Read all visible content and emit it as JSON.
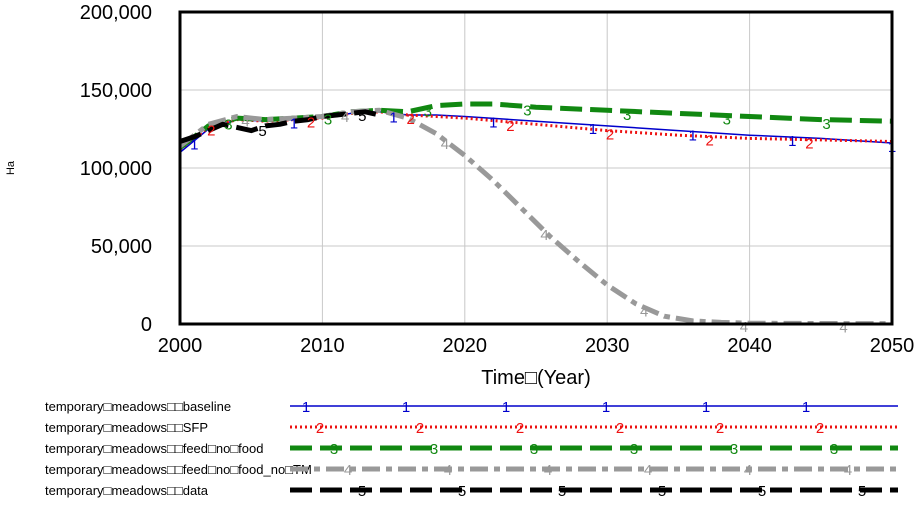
{
  "chart_data": {
    "type": "line",
    "title": "",
    "xlabel": "Time□(Year)",
    "ylabel": "Ha",
    "xlim": [
      2000,
      2050
    ],
    "ylim": [
      0,
      200000
    ],
    "x_ticks": [
      2000,
      2010,
      2020,
      2030,
      2040,
      2050
    ],
    "x_tick_labels": [
      "2000",
      "2010",
      "2020",
      "2030",
      "2040",
      "2050"
    ],
    "y_ticks": [
      0,
      50000,
      100000,
      150000,
      200000
    ],
    "y_tick_labels": [
      "0",
      "50,000",
      "100,000",
      "150,000",
      "200,000"
    ],
    "grid": true,
    "legend_position": "bottom",
    "series": [
      {
        "name": "temporary□meadows□□baseline",
        "marker": "1",
        "color": "#0000cc",
        "style": "solid",
        "x": [
          2000,
          2002,
          2004,
          2006,
          2008,
          2010,
          2012,
          2014,
          2016,
          2018,
          2020,
          2025,
          2030,
          2035,
          2040,
          2045,
          2050
        ],
        "y": [
          110000,
          125000,
          131000,
          130000,
          131000,
          132000,
          135000,
          136000,
          134000,
          134000,
          133000,
          130000,
          127000,
          124000,
          121000,
          119000,
          116000
        ]
      },
      {
        "name": "temporary□meadows□□SFP",
        "marker": "2",
        "color": "#ee1111",
        "style": "dotted",
        "x": [
          2000,
          2002,
          2004,
          2006,
          2008,
          2010,
          2012,
          2014,
          2016,
          2018,
          2020,
          2025,
          2030,
          2035,
          2040,
          2045,
          2050
        ],
        "y": [
          112000,
          126000,
          131000,
          130000,
          131000,
          132000,
          135000,
          136000,
          134000,
          133000,
          132000,
          128000,
          124000,
          121000,
          119000,
          118000,
          117000
        ]
      },
      {
        "name": "temporary□meadows□□feed□no□food",
        "marker": "3",
        "color": "#118811",
        "style": "dash",
        "x": [
          2000,
          2002,
          2004,
          2006,
          2008,
          2010,
          2012,
          2014,
          2016,
          2018,
          2020,
          2022,
          2025,
          2030,
          2035,
          2040,
          2045,
          2050
        ],
        "y": [
          113000,
          127000,
          132000,
          131000,
          132000,
          133000,
          136000,
          137000,
          136000,
          140000,
          141000,
          141000,
          139000,
          137000,
          135000,
          133000,
          131000,
          130000
        ]
      },
      {
        "name": "temporary□meadows□□feed□no□food_no□TM",
        "marker": "4",
        "color": "#999999",
        "style": "dashdot",
        "x": [
          2000,
          2002,
          2004,
          2006,
          2008,
          2010,
          2012,
          2014,
          2016,
          2018,
          2020,
          2022,
          2024,
          2026,
          2028,
          2030,
          2032,
          2034,
          2036,
          2038,
          2040,
          2045,
          2050
        ],
        "y": [
          114000,
          128000,
          133000,
          131000,
          132000,
          133000,
          136000,
          137000,
          132000,
          122000,
          108000,
          92000,
          74000,
          56000,
          40000,
          25000,
          13000,
          5000,
          2000,
          1000,
          500,
          300,
          200
        ]
      },
      {
        "name": "temporary□meadows□□data",
        "marker": "5",
        "color": "#000000",
        "style": "dash",
        "x": [
          2000,
          2001,
          2002,
          2003,
          2004,
          2005,
          2006,
          2007,
          2008,
          2009,
          2010,
          2011,
          2012,
          2013,
          2014
        ],
        "y": [
          117000,
          120000,
          124000,
          128000,
          126000,
          124000,
          127000,
          128000,
          130000,
          131000,
          133000,
          134000,
          135000,
          136000,
          134000
        ]
      }
    ]
  }
}
